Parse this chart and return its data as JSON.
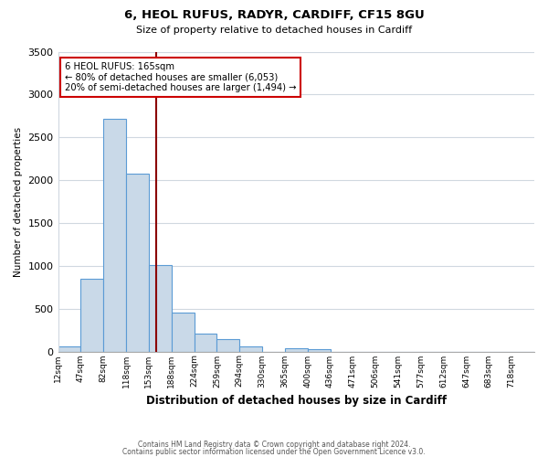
{
  "title_line1": "6, HEOL RUFUS, RADYR, CARDIFF, CF15 8GU",
  "title_line2": "Size of property relative to detached houses in Cardiff",
  "xlabel": "Distribution of detached houses by size in Cardiff",
  "ylabel": "Number of detached properties",
  "bar_color": "#c9d9e8",
  "bar_edge_color": "#5b9bd5",
  "categories": [
    "12sqm",
    "47sqm",
    "82sqm",
    "118sqm",
    "153sqm",
    "188sqm",
    "224sqm",
    "259sqm",
    "294sqm",
    "330sqm",
    "365sqm",
    "400sqm",
    "436sqm",
    "471sqm",
    "506sqm",
    "541sqm",
    "577sqm",
    "612sqm",
    "647sqm",
    "683sqm",
    "718sqm"
  ],
  "values": [
    55,
    850,
    2720,
    2080,
    1005,
    455,
    210,
    145,
    55,
    0,
    35,
    25,
    0,
    0,
    0,
    0,
    0,
    0,
    0,
    0,
    0
  ],
  "ylim": [
    0,
    3500
  ],
  "yticks": [
    0,
    500,
    1000,
    1500,
    2000,
    2500,
    3000,
    3500
  ],
  "property_line_x": 4.34,
  "property_line_color": "#8b0000",
  "annotation_text": "6 HEOL RUFUS: 165sqm\n← 80% of detached houses are smaller (6,053)\n20% of semi-detached houses are larger (1,494) →",
  "annotation_box_color": "#ffffff",
  "annotation_box_edge_color": "#cc0000",
  "footer_line1": "Contains HM Land Registry data © Crown copyright and database right 2024.",
  "footer_line2": "Contains public sector information licensed under the Open Government Licence v3.0.",
  "background_color": "#ffffff",
  "grid_color": "#d0d8e0"
}
